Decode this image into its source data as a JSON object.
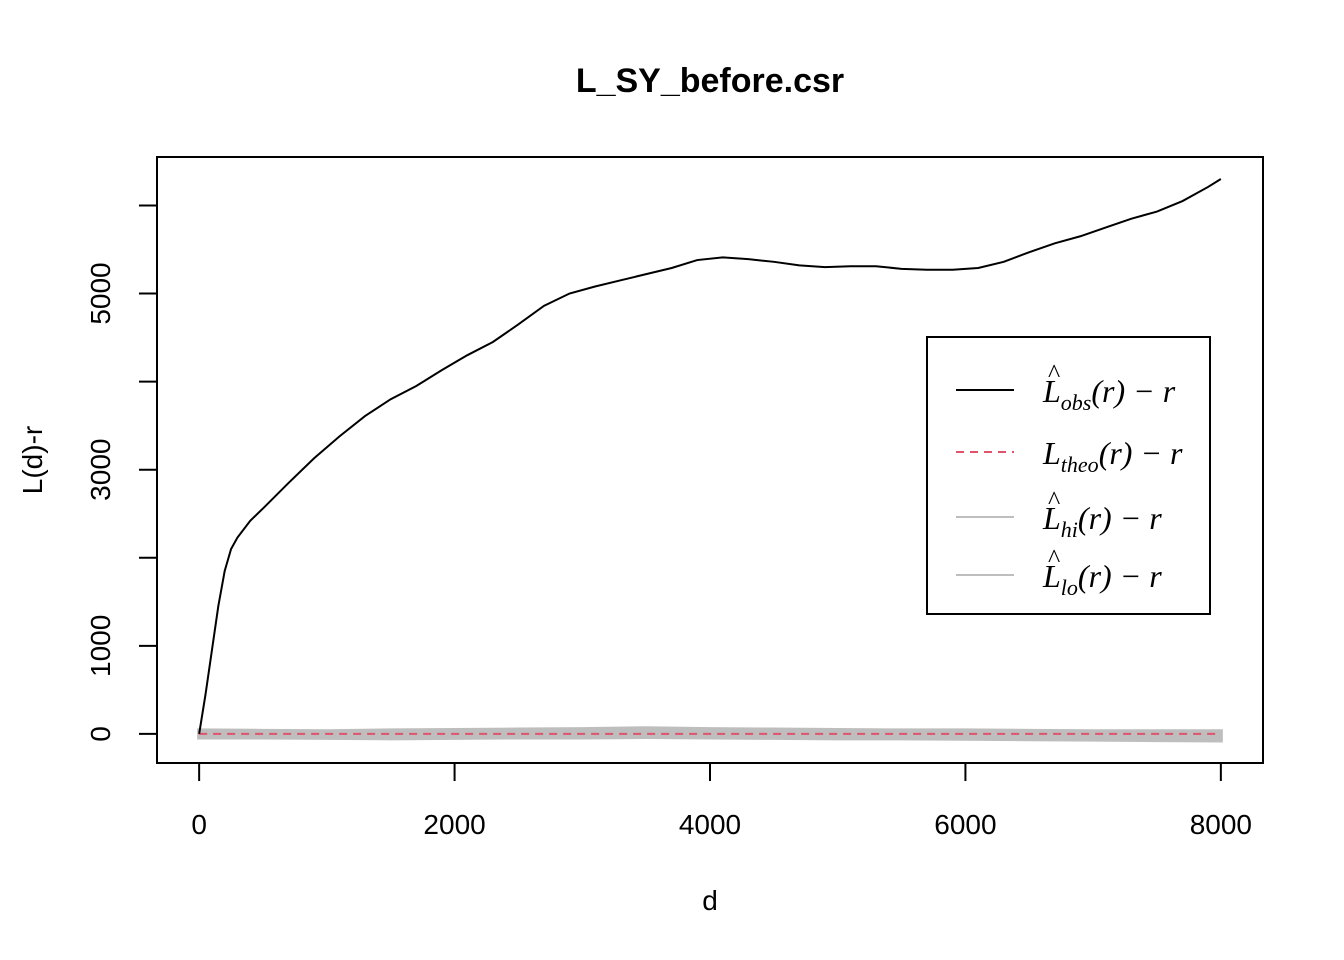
{
  "chart_data": {
    "type": "line",
    "title": "L_SY_before.csr",
    "xlabel": "d",
    "ylabel": "L(d)-r",
    "xlim": [
      -330,
      8330
    ],
    "ylim": [
      -330,
      6550
    ],
    "x_ticks": [
      0,
      2000,
      4000,
      6000,
      8000
    ],
    "y_ticks": [
      0,
      1000,
      3000,
      5000
    ],
    "y_minor_ticks": [
      2000,
      4000,
      6000
    ],
    "legend_position": "right",
    "series": [
      {
        "key": "obs",
        "name_main": "L",
        "name_sub": "obs",
        "name_hat": true,
        "name_suffix": "(r) − r",
        "color": "#000000",
        "dash": "none",
        "x": [
          0,
          50,
          100,
          150,
          200,
          250,
          300,
          400,
          500,
          700,
          900,
          1100,
          1300,
          1500,
          1700,
          1900,
          2100,
          2300,
          2500,
          2700,
          2900,
          3100,
          3300,
          3500,
          3700,
          3900,
          4100,
          4300,
          4500,
          4700,
          4900,
          5100,
          5300,
          5500,
          5700,
          5900,
          6100,
          6300,
          6500,
          6700,
          6900,
          7100,
          7300,
          7500,
          7700,
          7900,
          8000
        ],
        "y": [
          0,
          450,
          950,
          1450,
          1850,
          2100,
          2230,
          2420,
          2560,
          2850,
          3130,
          3380,
          3610,
          3800,
          3950,
          4130,
          4300,
          4450,
          4650,
          4860,
          5000,
          5080,
          5150,
          5220,
          5290,
          5380,
          5410,
          5390,
          5360,
          5320,
          5300,
          5310,
          5310,
          5280,
          5270,
          5270,
          5290,
          5360,
          5470,
          5570,
          5650,
          5750,
          5850,
          5930,
          6050,
          6210,
          6300
        ]
      },
      {
        "key": "theo",
        "name_main": "L",
        "name_sub": "theo",
        "name_hat": false,
        "name_suffix": "(r) − r",
        "color": "#DF536B",
        "dash": "8,6",
        "x": [
          0,
          8000
        ],
        "y": [
          0,
          0
        ]
      },
      {
        "key": "hi",
        "name_main": "L",
        "name_sub": "hi",
        "name_hat": true,
        "name_suffix": "(r) − r",
        "color": "#BEBEBE",
        "dash": "none",
        "x": [
          0,
          500,
          1000,
          1500,
          2000,
          2500,
          3000,
          3500,
          4000,
          4500,
          5000,
          5500,
          6000,
          6500,
          7000,
          7500,
          8000
        ],
        "y": [
          40,
          35,
          30,
          40,
          45,
          50,
          55,
          65,
          55,
          50,
          45,
          40,
          40,
          35,
          30,
          30,
          30
        ]
      },
      {
        "key": "lo",
        "name_main": "L",
        "name_sub": "lo",
        "name_hat": true,
        "name_suffix": "(r) − r",
        "color": "#BEBEBE",
        "dash": "none",
        "x": [
          0,
          500,
          1000,
          1500,
          2000,
          2500,
          3000,
          3500,
          4000,
          4500,
          5000,
          5500,
          6000,
          6500,
          7000,
          7500,
          8000
        ],
        "y": [
          -40,
          -40,
          -45,
          -50,
          -45,
          -40,
          -40,
          -35,
          -40,
          -45,
          -50,
          -50,
          -55,
          -60,
          -65,
          -70,
          -75
        ]
      }
    ]
  }
}
